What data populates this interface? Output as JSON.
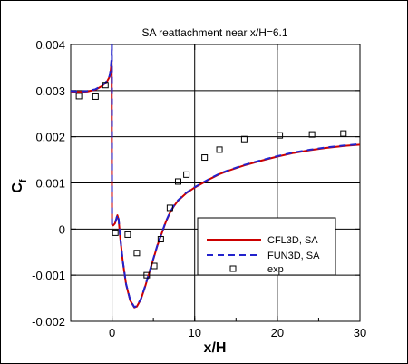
{
  "chart_data": {
    "type": "line",
    "title": "SA reattachment near x/H=6.1",
    "xlabel": "x/H",
    "ylabel_main": "C",
    "ylabel_sub": "f",
    "xlim": [
      -5,
      30
    ],
    "ylim": [
      -0.002,
      0.004
    ],
    "xticks": [
      0,
      10,
      20,
      30
    ],
    "xtick_labels": [
      "0",
      "10",
      "20",
      "30"
    ],
    "yticks": [
      -0.002,
      -0.001,
      0,
      0.001,
      0.002,
      0.003,
      0.004
    ],
    "ytick_labels": [
      "-0.002",
      "-0.001",
      "0",
      "0.001",
      "0.002",
      "0.003",
      "0.004"
    ],
    "grid": true,
    "legend_position": "lower-right",
    "series": [
      {
        "name": "CFL3D, SA",
        "style": "solid",
        "color": "#cc0000",
        "x": [
          -5,
          -4,
          -3,
          -2,
          -1.2,
          -0.6,
          -0.3,
          -0.15,
          -0.05,
          0.0,
          0.05,
          0.15,
          0.35,
          0.5,
          0.65,
          0.8,
          1.0,
          1.3,
          1.7,
          2.2,
          2.7,
          3.0,
          3.5,
          4.0,
          4.5,
          5.0,
          5.5,
          6.0,
          6.5,
          7.0,
          7.5,
          8.0,
          9.0,
          10.0,
          11.0,
          12.0,
          13.0,
          14.0,
          16.0,
          18.0,
          20.0,
          22.0,
          24.0,
          26.0,
          28.0,
          30.0
        ],
        "y": [
          0.00298,
          0.00297,
          0.00298,
          0.00302,
          0.0031,
          0.0032,
          0.0033,
          0.00345,
          0.00365,
          0.0001,
          8e-05,
          8e-05,
          0.00012,
          0.0002,
          0.0003,
          0.0002,
          -0.0002,
          -0.0007,
          -0.0012,
          -0.00155,
          -0.0017,
          -0.00168,
          -0.00152,
          -0.00125,
          -0.00095,
          -0.00065,
          -0.00035,
          -0.0001,
          0.00015,
          0.00035,
          0.0005,
          0.00062,
          0.00078,
          0.0009,
          0.001,
          0.0011,
          0.00119,
          0.00126,
          0.00138,
          0.00148,
          0.00157,
          0.00165,
          0.00171,
          0.00176,
          0.0018,
          0.00183
        ]
      },
      {
        "name": "FUN3D, SA",
        "style": "dashed",
        "color": "#2222cc",
        "x": [
          -5,
          -4,
          -3,
          -2,
          -1.2,
          -0.6,
          -0.3,
          -0.15,
          -0.05,
          -0.02,
          0.0,
          0.05,
          0.15,
          0.35,
          0.5,
          0.65,
          0.8,
          1.0,
          1.3,
          1.7,
          2.2,
          2.7,
          3.0,
          3.5,
          4.0,
          4.5,
          5.0,
          5.5,
          6.0,
          6.5,
          7.0,
          7.5,
          8.0,
          9.0,
          10.0,
          11.0,
          12.0,
          13.0,
          14.0,
          16.0,
          18.0,
          20.0,
          22.0,
          24.0,
          26.0,
          28.0,
          30.0
        ],
        "y": [
          0.00299,
          0.00298,
          0.00299,
          0.00303,
          0.00311,
          0.00321,
          0.00332,
          0.00348,
          0.00372,
          0.004,
          0.00012,
          9e-05,
          9e-05,
          0.00013,
          0.00021,
          0.00031,
          0.00021,
          -0.00019,
          -0.00069,
          -0.00119,
          -0.00154,
          -0.00169,
          -0.00167,
          -0.00151,
          -0.00124,
          -0.00094,
          -0.00064,
          -0.00034,
          -9e-05,
          0.00016,
          0.00036,
          0.00051,
          0.00063,
          0.00079,
          0.00091,
          0.00101,
          0.00111,
          0.0012,
          0.00127,
          0.00139,
          0.00149,
          0.00158,
          0.00166,
          0.00172,
          0.00177,
          0.00181,
          0.00184
        ]
      },
      {
        "name": "exp",
        "style": "markers",
        "marker": "square",
        "x": [
          -4.0,
          -2.0,
          -0.8,
          0.4,
          1.9,
          3.0,
          4.2,
          5.1,
          5.9,
          7.0,
          8.0,
          9.0,
          11.2,
          13.0,
          16.0,
          20.3,
          24.2,
          28.0
        ],
        "y": [
          0.00288,
          0.00287,
          0.00312,
          -8e-05,
          -0.00012,
          -0.00052,
          -0.001,
          -0.0008,
          -0.00022,
          0.00046,
          0.00103,
          0.00118,
          0.00155,
          0.00172,
          0.00195,
          0.00203,
          0.00205,
          0.00207
        ]
      }
    ]
  }
}
